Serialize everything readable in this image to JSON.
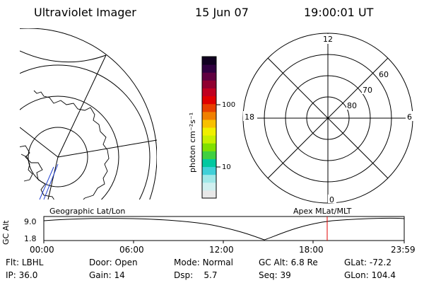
{
  "header": {
    "instrument": "Ultraviolet Imager",
    "date": "15 Jun 07",
    "time": "19:00:01 UT"
  },
  "colorbar": {
    "label": "photon cm⁻²s⁻¹",
    "ticks": [
      "100",
      "10"
    ],
    "colors": [
      "#e8e8e8",
      "#d0f0f0",
      "#a0e8e8",
      "#40d0d8",
      "#00c8a0",
      "#40d040",
      "#80e000",
      "#c8f000",
      "#f0f000",
      "#f8c000",
      "#f08000",
      "#e84000",
      "#e00000",
      "#c00020",
      "#900030",
      "#600040",
      "#300040",
      "#100020"
    ]
  },
  "polar_plot": {
    "mlt_labels": {
      "top": "12",
      "left": "18",
      "right": "6",
      "bottom": "0"
    },
    "lat_labels": [
      "60",
      "70",
      "80"
    ]
  },
  "timeline": {
    "left_label": "Geographic Lat/Lon",
    "right_label": "Apex MLat/MLT",
    "axis_label": "GC Alt",
    "y_ticks": [
      "9.0",
      "1.8"
    ],
    "x_ticks": [
      "00:00",
      "06:00",
      "12:00",
      "18:00",
      "23:59"
    ],
    "marker_time": "19:00"
  },
  "info": {
    "row1": [
      {
        "label": "Flt:",
        "value": "LBHL"
      },
      {
        "label": "Door:",
        "value": "Open"
      },
      {
        "label": "Mode:",
        "value": "Normal"
      },
      {
        "label": "GC Alt:",
        "value": "6.8 Re"
      },
      {
        "label": "GLat:",
        "value": "-72.2"
      }
    ],
    "row2": [
      {
        "label": "IP:",
        "value": "36.0"
      },
      {
        "label": "Gain:",
        "value": "14"
      },
      {
        "label": "Dsp:",
        "value": "5.7"
      },
      {
        "label": "Seq:",
        "value": "39"
      },
      {
        "label": "GLon:",
        "value": "104.4"
      }
    ]
  }
}
